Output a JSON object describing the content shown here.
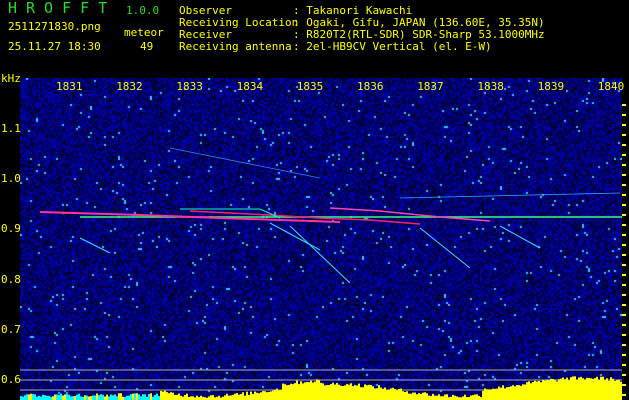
{
  "app": {
    "title": "HROFFT",
    "version": "1.0.0"
  },
  "file": {
    "name": "2511271830.png",
    "datetime": "25.11.27 18:30"
  },
  "meteor": {
    "label": "meteor",
    "count": "49"
  },
  "info": [
    {
      "label": "Observer",
      "value": ": Takanori Kawachi"
    },
    {
      "label": "Receiving Location",
      "value": ": Ogaki, Gifu, JAPAN (136.60E, 35.35N)"
    },
    {
      "label": "Receiver",
      "value": ": R820T2(RTL-SDR) SDR-Sharp 53.1000MHz"
    },
    {
      "label": "Receiving antenna",
      "value": ": 2el-HB9CV Vertical (el. E-W)"
    }
  ],
  "axes": {
    "y_unit": "kHz",
    "x_ticks": [
      "1831",
      "1832",
      "1833",
      "1834",
      "1835",
      "1836",
      "1837",
      "1838",
      "1839",
      "1840"
    ],
    "y_ticks": [
      "1.1",
      "1.0",
      "0.9",
      "0.8",
      "0.7",
      "0.6"
    ]
  },
  "colors": {
    "text": "#ffff00",
    "title": "#22dd22",
    "background": "#000000",
    "noise": "#0a10a0",
    "power": "#ffff00",
    "power_low": "#00ffff"
  }
}
